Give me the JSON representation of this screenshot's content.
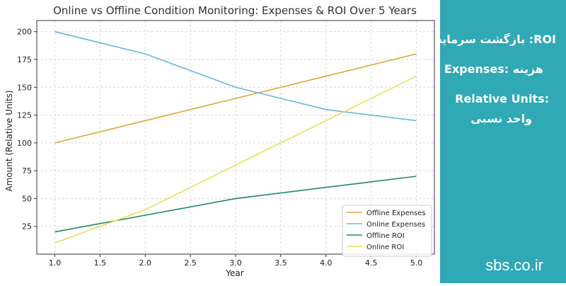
{
  "chart_data": {
    "type": "line",
    "title": "Online vs Offline Condition Monitoring: Expenses & ROI Over 5 Years",
    "xlabel": "Year",
    "ylabel": "Amount (Relative Units)",
    "xlim": [
      0.8,
      5.2
    ],
    "ylim": [
      0,
      210
    ],
    "x_ticks": [
      "1.0",
      "1.5",
      "2.0",
      "2.5",
      "3.0",
      "3.5",
      "4.0",
      "4.5",
      "5.0"
    ],
    "y_ticks": [
      "25",
      "50",
      "75",
      "100",
      "125",
      "150",
      "175",
      "200"
    ],
    "grid": true,
    "legend_position": "bottom-right",
    "x": [
      1,
      2,
      3,
      4,
      5
    ],
    "series": [
      {
        "name": "Offline Expenses",
        "values": [
          100,
          120,
          140,
          160,
          180
        ],
        "color": "#dba83a"
      },
      {
        "name": "Online Expenses",
        "values": [
          200,
          180,
          150,
          130,
          120
        ],
        "color": "#6ab7d9"
      },
      {
        "name": "Offline ROI",
        "values": [
          20,
          35,
          50,
          60,
          70
        ],
        "color": "#1f8a63"
      },
      {
        "name": "Online ROI",
        "values": [
          10,
          40,
          80,
          120,
          160
        ],
        "color": "#e6e24f"
      }
    ]
  },
  "sidebar": {
    "lines": [
      "بازگشت سرمایه :ROI",
      "Expenses: هزینه",
      "Relative Units:",
      "واحد نسبی"
    ],
    "brand": "sbs.co.ir",
    "background": "#2fa9b5"
  }
}
